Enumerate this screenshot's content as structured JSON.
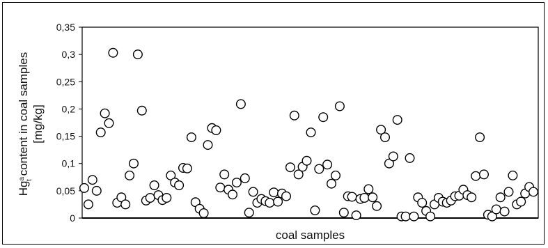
{
  "chart_data": {
    "type": "scatter",
    "title": "",
    "xlabel": "coal samples",
    "ylabel": {
      "line1_prefix": "Hg",
      "line1_super": "a",
      "line1_sub": "t",
      "line1_suffix": " content  in coal samples",
      "line2": "[mg/kg]"
    },
    "ylim": [
      0,
      0.35
    ],
    "yticks": [
      "0",
      "0,05",
      "0,1",
      "0,15",
      "0,2",
      "0,25",
      "0,3",
      "0,35"
    ],
    "ytick_values": [
      0,
      0.05,
      0.1,
      0.15,
      0.2,
      0.25,
      0.3,
      0.35
    ],
    "grid": false,
    "legend": "none",
    "marker": "open-circle",
    "marker_color": "#000000",
    "x": [
      1,
      2,
      3,
      4,
      5,
      6,
      7,
      8,
      9,
      10,
      11,
      12,
      13,
      14,
      15,
      16,
      17,
      18,
      19,
      20,
      21,
      22,
      23,
      24,
      25,
      26,
      27,
      28,
      29,
      30,
      31,
      32,
      33,
      34,
      35,
      36,
      37,
      38,
      39,
      40,
      41,
      42,
      43,
      44,
      45,
      46,
      47,
      48,
      49,
      50,
      51,
      52,
      53,
      54,
      55,
      56,
      57,
      58,
      59,
      60,
      61,
      62,
      63,
      64,
      65,
      66,
      67,
      68,
      69,
      70,
      71,
      72,
      73,
      74,
      75,
      76,
      77,
      78,
      79,
      80,
      81,
      82,
      83,
      84,
      85,
      86,
      87,
      88,
      89,
      90,
      91,
      92,
      93,
      94,
      95,
      96,
      97,
      98,
      99,
      100,
      101,
      102,
      103,
      104,
      105,
      106,
      107,
      108,
      109,
      110
    ],
    "y": [
      0.055,
      0.025,
      0.07,
      0.05,
      0.157,
      0.192,
      0.174,
      0.303,
      0.028,
      0.038,
      0.025,
      0.078,
      0.1,
      0.3,
      0.197,
      0.032,
      0.037,
      0.06,
      0.042,
      0.033,
      0.037,
      0.078,
      0.065,
      0.06,
      0.092,
      0.091,
      0.148,
      0.029,
      0.017,
      0.009,
      0.134,
      0.165,
      0.161,
      0.056,
      0.08,
      0.052,
      0.043,
      0.065,
      0.209,
      0.073,
      0.01,
      0.048,
      0.028,
      0.035,
      0.031,
      0.028,
      0.047,
      0.03,
      0.045,
      0.04,
      0.093,
      0.188,
      0.08,
      0.094,
      0.105,
      0.157,
      0.014,
      0.09,
      0.185,
      0.098,
      0.063,
      0.078,
      0.205,
      0.01,
      0.04,
      0.039,
      0.005,
      0.035,
      0.037,
      0.053,
      0.038,
      0.022,
      0.162,
      0.148,
      0.1,
      0.113,
      0.18,
      0.003,
      0.003,
      0.11,
      0.003,
      0.038,
      0.028,
      0.013,
      0.003,
      0.025,
      0.037,
      0.03,
      0.028,
      0.032,
      0.04,
      0.041,
      0.052,
      0.042,
      0.038,
      0.077,
      0.148,
      0.08,
      0.006,
      0.003,
      0.016,
      0.038,
      0.012,
      0.048,
      0.078,
      0.025,
      0.03,
      0.045,
      0.057,
      0.048
    ]
  }
}
